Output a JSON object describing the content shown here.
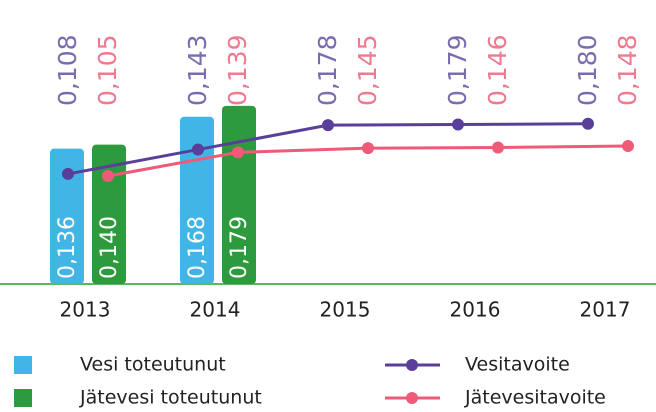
{
  "chart_data": {
    "type": "bar",
    "categories": [
      "2013",
      "2014",
      "2015",
      "2016",
      "2017"
    ],
    "ylim": [
      0,
      0.21
    ],
    "y2lim": [
      -0.05,
      0.25
    ],
    "series": [
      {
        "name": "Vesi toteutunut",
        "color": "#41b6e6",
        "values": [
          0.136,
          0.168,
          null,
          null,
          null
        ],
        "value_labels": [
          "0,136",
          "0,168",
          null,
          null,
          null
        ]
      },
      {
        "name": "Jätevesi toteutunut",
        "color": "#2e9a3e",
        "values": [
          0.14,
          0.179,
          null,
          null,
          null
        ],
        "value_labels": [
          "0,140",
          "0,179",
          null,
          null,
          null
        ]
      },
      {
        "name": "Vesitavoite",
        "type": "line",
        "axis": "y2",
        "color": "#5a3f9a",
        "values": [
          0.108,
          0.143,
          0.178,
          0.179,
          0.18
        ],
        "value_labels": [
          "0,108",
          "0,143",
          "0,178",
          "0,179",
          "0,180"
        ]
      },
      {
        "name": "Jätevesitavoite",
        "type": "line",
        "axis": "y2",
        "color": "#ee5a78",
        "values": [
          0.105,
          0.139,
          0.145,
          0.146,
          0.148
        ],
        "value_labels": [
          "0,105",
          "0,139",
          "0,145",
          "0,146",
          "0,148"
        ]
      }
    ]
  }
}
